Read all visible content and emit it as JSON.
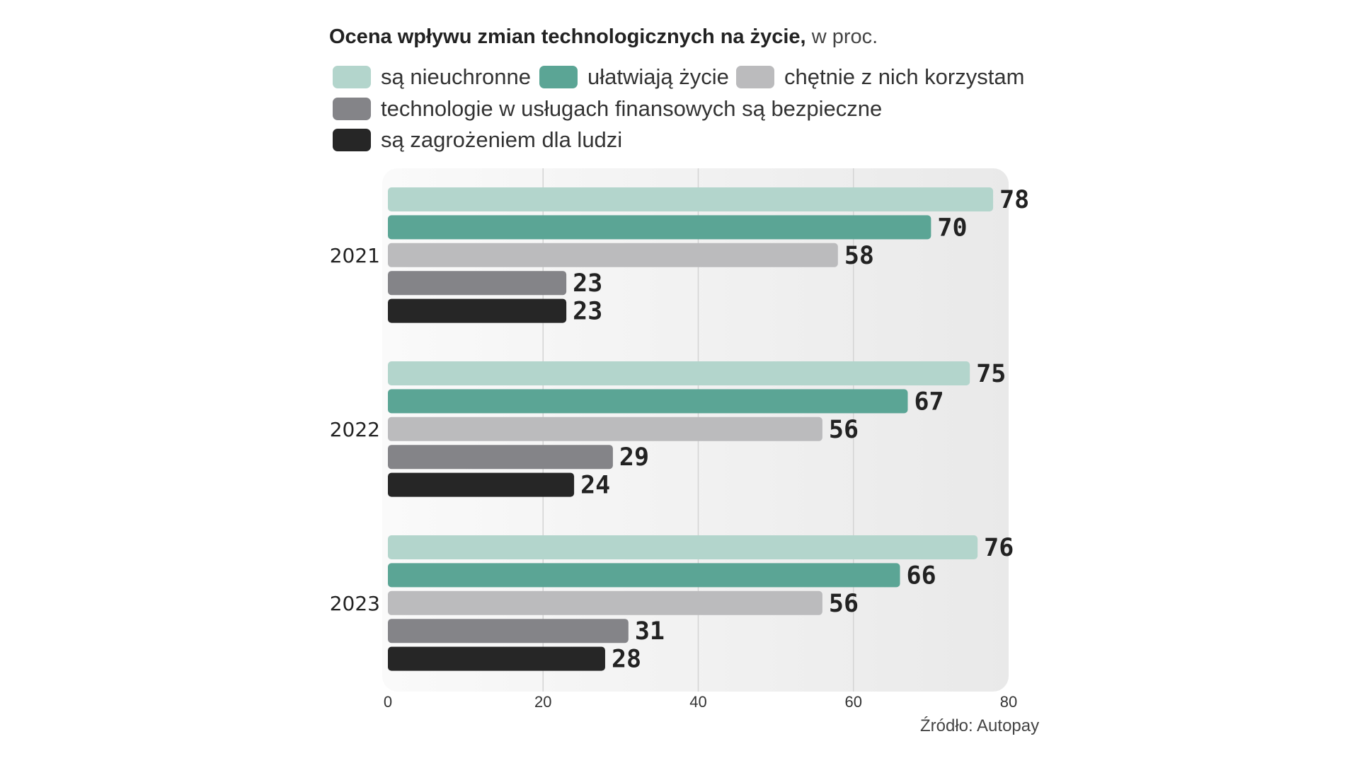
{
  "chart_data": {
    "type": "bar",
    "orientation": "horizontal",
    "title": "Ocena wpływu zmian technologicznych na życie,",
    "subtitle": "w proc.",
    "categories": [
      "2021",
      "2022",
      "2023"
    ],
    "series": [
      {
        "name": "są nieuchronne",
        "color": "#b3d5cc",
        "values": [
          78,
          75,
          76
        ]
      },
      {
        "name": "ułatwiają życie",
        "color": "#5ba595",
        "values": [
          70,
          67,
          66
        ]
      },
      {
        "name": "chętnie z nich korzystam",
        "color": "#bbbbbd",
        "values": [
          58,
          56,
          56
        ]
      },
      {
        "name": "technologie w usługach finansowych są bezpieczne",
        "color": "#848488",
        "values": [
          23,
          29,
          31
        ]
      },
      {
        "name": "są zagrożeniem dla ludzi",
        "color": "#262626",
        "values": [
          23,
          24,
          28
        ]
      }
    ],
    "xlim": [
      0,
      80
    ],
    "xticks": [
      "0",
      "20",
      "40",
      "60",
      "80"
    ],
    "grid": true,
    "legend_position": "top",
    "source": "Źródło: Autopay"
  }
}
